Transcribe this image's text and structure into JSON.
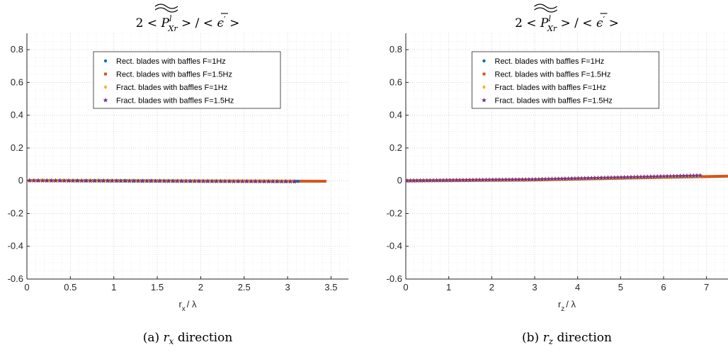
{
  "chart_data": [
    {
      "type": "scatter",
      "title": "2 < P̃_Xr^l > / < ε̄ʹ >",
      "title_parts": {
        "lead": "2 < ",
        "sym": "P",
        "sup": "l",
        "sub": "Xr",
        "mid": " > / < ",
        "eps": "ϵ",
        "prime": "′",
        "tail": " >"
      },
      "xlabel": {
        "base": "r",
        "sub": "x",
        "rest": "/ λ"
      },
      "ylabel": "",
      "xlim": [
        0,
        3.7
      ],
      "ylim": [
        -0.6,
        0.9
      ],
      "xticks": [
        "0",
        "0.5",
        "1",
        "1.5",
        "2",
        "2.5",
        "3",
        "3.5"
      ],
      "yticks": [
        "-0.6",
        "-0.4",
        "-0.2",
        "0",
        "0.2",
        "0.4",
        "0.6",
        "0.8"
      ],
      "grid": true,
      "minor_grid": true,
      "legend_position": "top-center",
      "caption": {
        "label": "(a)",
        "var": "r",
        "sub": "x",
        "text": "direction"
      },
      "series": [
        {
          "name": "Rect. blades with baffles F=1Hz",
          "marker": "dot",
          "color": "#0072BD",
          "x_range": [
            0.03,
            3.12
          ],
          "n": 95,
          "y": [
            [
              0,
              0.002
            ],
            [
              3.12,
              -0.004
            ]
          ]
        },
        {
          "name": "Rect. blades with baffles F=1.5Hz",
          "marker": "square",
          "color": "#D95319",
          "x_range": [
            0.03,
            3.43
          ],
          "n": 115,
          "y": [
            [
              0,
              0.001
            ],
            [
              3.43,
              -0.003
            ]
          ]
        },
        {
          "name": "Fract. blades with baffles F=1Hz",
          "marker": "diamond",
          "color": "#EDB120",
          "x_range": [
            0.03,
            3.08
          ],
          "n": 95,
          "y": [
            [
              0,
              0.002
            ],
            [
              3.08,
              -0.003
            ]
          ]
        },
        {
          "name": "Fract. blades with baffles F=1.5Hz",
          "marker": "star",
          "color": "#7E2F8E",
          "x_range": [
            0.03,
            3.08
          ],
          "n": 62,
          "y": [
            [
              0,
              0.001
            ],
            [
              3.08,
              -0.005
            ]
          ]
        }
      ]
    },
    {
      "type": "scatter",
      "title": "2 < P̃_Xr^l > / < ε̄ʹ >",
      "title_parts": {
        "lead": "2 < ",
        "sym": "P",
        "sup": "l",
        "sub": "Xr",
        "mid": " > / < ",
        "eps": "ϵ",
        "prime": "′",
        "tail": " >"
      },
      "xlabel": {
        "base": "r",
        "sub": "z",
        "rest": "/ λ"
      },
      "ylabel": "",
      "xlim": [
        0,
        7.5
      ],
      "ylim": [
        -0.6,
        0.9
      ],
      "xticks": [
        "0",
        "1",
        "2",
        "3",
        "4",
        "5",
        "6",
        "7"
      ],
      "yticks": [
        "-0.6",
        "-0.4",
        "-0.2",
        "0",
        "0.2",
        "0.4",
        "0.6",
        "0.8"
      ],
      "grid": true,
      "minor_grid": true,
      "legend_position": "top-center",
      "caption": {
        "label": "(b)",
        "var": "r",
        "sub": "z",
        "text": "direction"
      },
      "series": [
        {
          "name": "Rect. blades with baffles F=1Hz",
          "marker": "dot",
          "color": "#0072BD",
          "x_range": [
            0.03,
            6.85
          ],
          "n": 130,
          "y": [
            [
              0,
              0
            ],
            [
              3,
              0.006
            ],
            [
              6.85,
              0.027
            ]
          ]
        },
        {
          "name": "Rect. blades with baffles F=1.5Hz",
          "marker": "square",
          "color": "#D95319",
          "x_range": [
            0.03,
            7.5
          ],
          "n": 150,
          "y": [
            [
              0,
              0
            ],
            [
              3,
              0.005
            ],
            [
              7.5,
              0.028
            ]
          ]
        },
        {
          "name": "Fract. blades with baffles F=1Hz",
          "marker": "diamond",
          "color": "#EDB120",
          "x_range": [
            0.03,
            6.85
          ],
          "n": 130,
          "y": [
            [
              0,
              0
            ],
            [
              3,
              0.006
            ],
            [
              6.85,
              0.028
            ]
          ]
        },
        {
          "name": "Fract. blades with baffles F=1.5Hz",
          "marker": "star",
          "color": "#7E2F8E",
          "x_range": [
            0.03,
            6.85
          ],
          "n": 90,
          "y": [
            [
              0,
              0
            ],
            [
              3,
              0.008
            ],
            [
              6.85,
              0.032
            ]
          ]
        }
      ]
    }
  ]
}
